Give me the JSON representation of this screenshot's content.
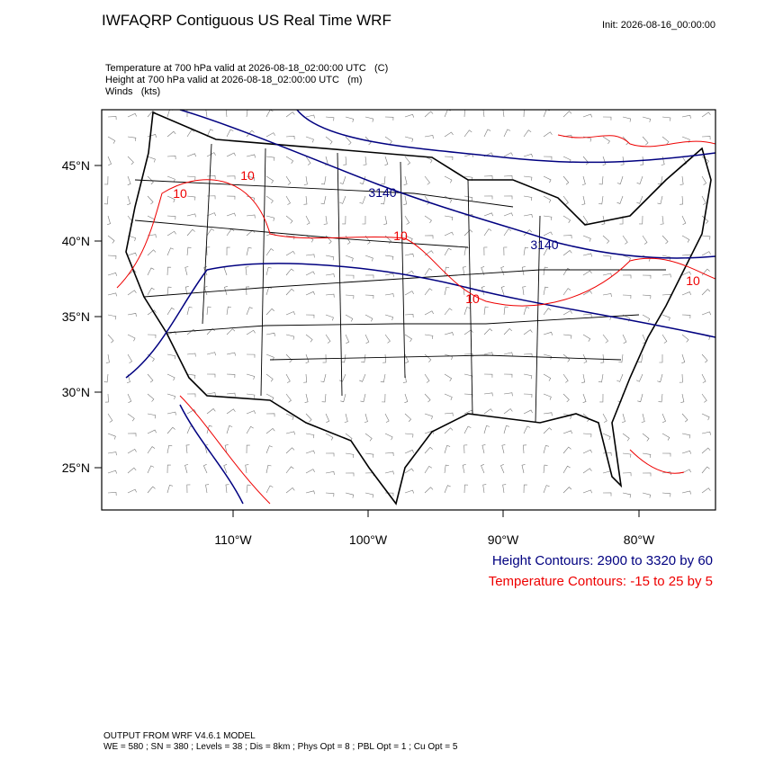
{
  "header": {
    "title": "IWFAQRP Contiguous US Real Time WRF",
    "init": "Init: 2026-08-16_00:00:00",
    "fields": [
      "Temperature at 700 hPa valid at 2026-08-18_02:00:00 UTC   (C)",
      "Height at 700 hPa valid at 2026-08-18_02:00:00 UTC   (m)",
      "Winds   (kts)"
    ]
  },
  "map": {
    "lat_labels": [
      "45°N",
      "40°N",
      "35°N",
      "30°N",
      "25°N"
    ],
    "lon_labels": [
      "110°W",
      "100°W",
      "90°W",
      "80°W"
    ],
    "height_labels": [
      "3140",
      "3140"
    ],
    "temperature_labels": [
      "10",
      "10",
      "10",
      "10",
      "10"
    ]
  },
  "legend": {
    "height": "Height Contours: 2900 to 3320 by 60",
    "temperature": "Temperature Contours: -15 to 25 by 5"
  },
  "footer": {
    "model": "OUTPUT FROM WRF V4.6.1 MODEL",
    "settings": "WE = 580 ; SN = 380 ; Levels = 38 ; Dis = 8km ; Phys Opt = 8 ; PBL Opt = 1 ; Cu Opt = 5"
  }
}
